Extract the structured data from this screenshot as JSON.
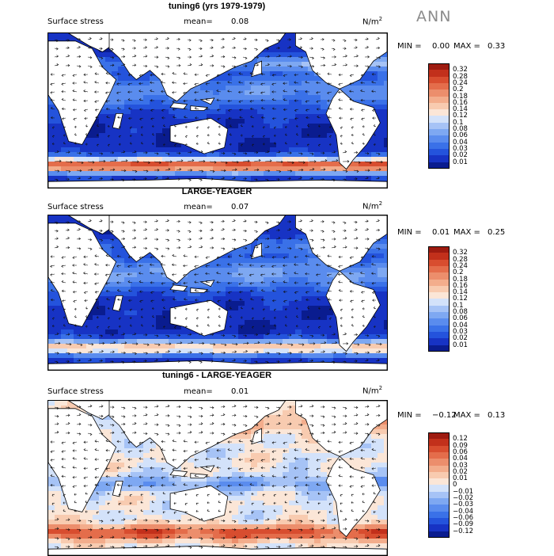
{
  "season": "ANN",
  "unit_base": "N/m",
  "unit_exp": "2",
  "colors": {
    "positive_scale": [
      "#0a1c8f",
      "#1733c4",
      "#2453dc",
      "#3a71e8",
      "#5a8cee",
      "#7ea8f2",
      "#a6c3f6",
      "#d3e2fa",
      "#fbe6d7",
      "#f8cbb0",
      "#f3ad8c",
      "#ec8e6c",
      "#e46d4b",
      "#d84d2f",
      "#c2301b",
      "#9e1b10"
    ],
    "diff_scale": [
      "#0a1c8f",
      "#1733c4",
      "#2453dc",
      "#3a71e8",
      "#5a8cee",
      "#7ea8f2",
      "#a6c3f6",
      "#d3e2fa",
      "#fbe6d7",
      "#f8cbb0",
      "#f3ad8c",
      "#ec8e6c",
      "#e46d4b",
      "#d84d2f",
      "#c2301b",
      "#9e1b10"
    ]
  },
  "panels": [
    {
      "title": "tuning6 (yrs 1979-1979)",
      "variable": "Surface stress",
      "mean_label": "mean=",
      "mean_value": "0.08",
      "min_label": "MIN =",
      "min_value": "0.00",
      "max_label": "MAX =",
      "max_value": "0.33",
      "colorbar_ticks": [
        "0.32",
        "0.28",
        "0.24",
        "0.2",
        "0.18",
        "0.16",
        "0.14",
        "0.12",
        "0.1",
        "0.08",
        "0.06",
        "0.04",
        "0.03",
        "0.02",
        "0.01"
      ]
    },
    {
      "title": "LARGE-YEAGER",
      "variable": "Surface stress",
      "mean_label": "mean=",
      "mean_value": "0.07",
      "min_label": "MIN =",
      "min_value": "0.01",
      "max_label": "MAX =",
      "max_value": "0.25",
      "colorbar_ticks": [
        "0.32",
        "0.28",
        "0.24",
        "0.2",
        "0.18",
        "0.16",
        "0.14",
        "0.12",
        "0.1",
        "0.08",
        "0.06",
        "0.04",
        "0.03",
        "0.02",
        "0.01"
      ]
    },
    {
      "title": "tuning6 - LARGE-YEAGER",
      "variable": "Surface stress",
      "mean_label": "mean=",
      "mean_value": "0.01",
      "min_label": "MIN =",
      "min_value": "−0.12",
      "max_label": "MAX =",
      "max_value": "0.13",
      "colorbar_ticks": [
        "0.12",
        "0.09",
        "0.06",
        "0.04",
        "0.03",
        "0.02",
        "0.01",
        "0",
        "−0.01",
        "−0.02",
        "−0.03",
        "−0.04",
        "−0.06",
        "−0.09",
        "−0.12"
      ]
    }
  ]
}
